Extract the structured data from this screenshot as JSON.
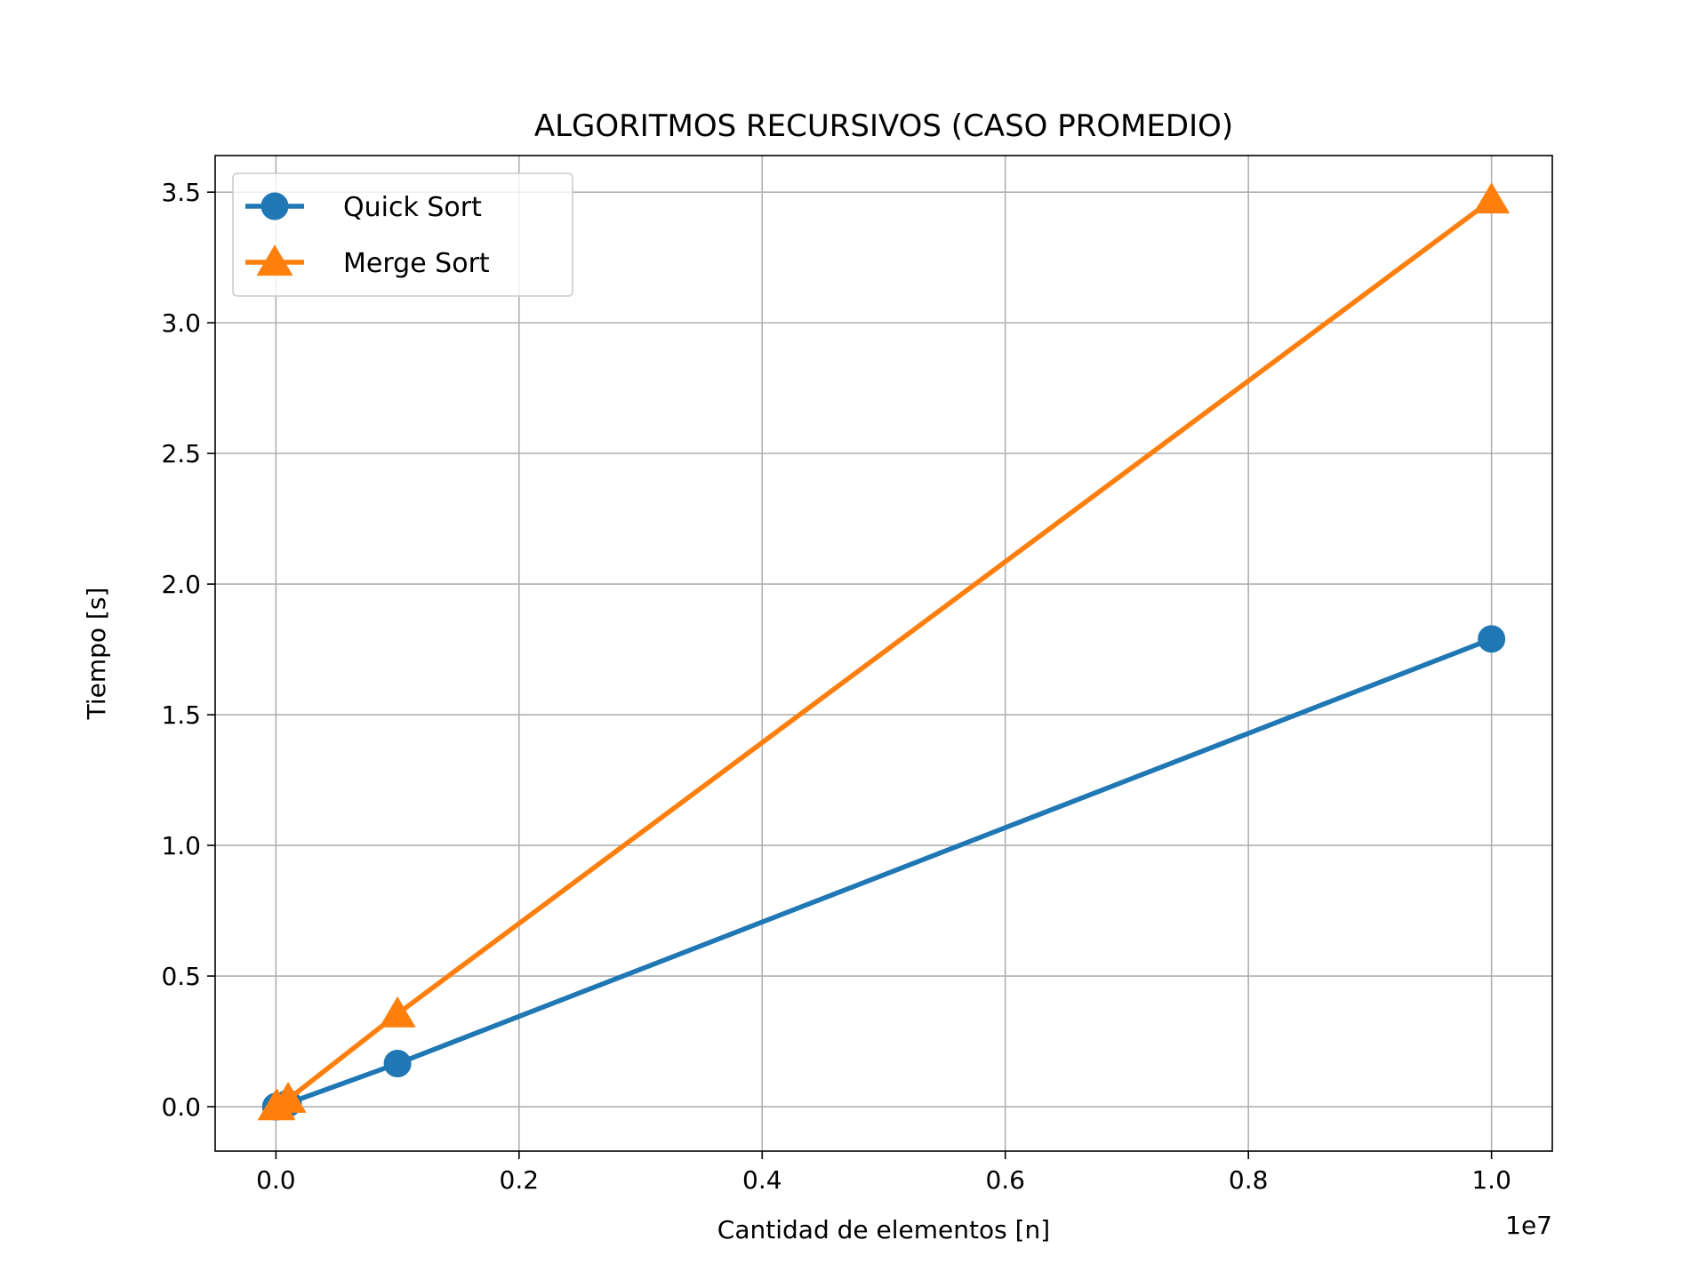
{
  "chart_data": {
    "type": "line",
    "title": "ALGORITMOS RECURSIVOS (CASO PROMEDIO)",
    "xlabel": "Cantidad de elementos [n]",
    "ylabel": "Tiempo [s]",
    "x_offset_label": "1e7",
    "x": [
      10,
      100,
      1000,
      10000,
      100000,
      1000000,
      10000000
    ],
    "series": [
      {
        "name": "Quick Sort",
        "color": "#1f77b4",
        "marker": "circle",
        "values": [
          0.0,
          0.0,
          0.0,
          0.001,
          0.013,
          0.165,
          1.79
        ]
      },
      {
        "name": "Merge Sort",
        "color": "#ff7f0e",
        "marker": "triangle",
        "values": [
          0.0,
          0.0,
          0.0,
          0.002,
          0.028,
          0.355,
          3.47
        ]
      }
    ],
    "xlim": [
      -500000,
      10500000
    ],
    "ylim": [
      -0.17,
      3.64
    ],
    "xticks": [
      0,
      2000000,
      4000000,
      6000000,
      8000000,
      10000000
    ],
    "xtick_labels": [
      "0.0",
      "0.2",
      "0.4",
      "0.6",
      "0.8",
      "1.0"
    ],
    "yticks": [
      0.0,
      0.5,
      1.0,
      1.5,
      2.0,
      2.5,
      3.0,
      3.5
    ],
    "ytick_labels": [
      "0.0",
      "0.5",
      "1.0",
      "1.5",
      "2.0",
      "2.5",
      "3.0",
      "3.5"
    ],
    "grid": true,
    "legend_position": "top-left"
  }
}
